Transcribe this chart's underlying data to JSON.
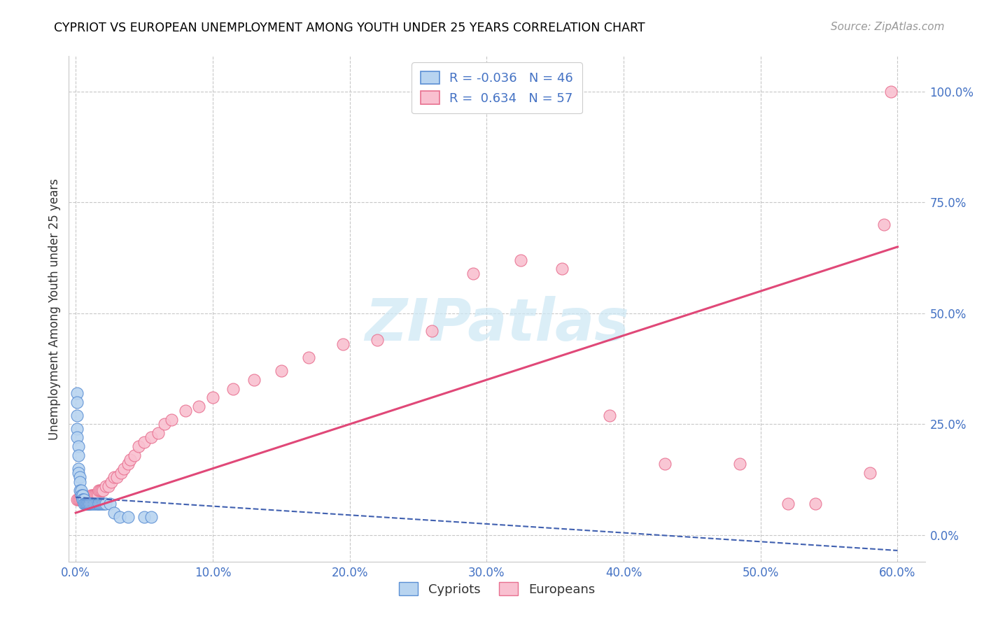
{
  "title": "CYPRIOT VS EUROPEAN UNEMPLOYMENT AMONG YOUTH UNDER 25 YEARS CORRELATION CHART",
  "source": "Source: ZipAtlas.com",
  "xlabel_ticks": [
    "0.0%",
    "10.0%",
    "20.0%",
    "30.0%",
    "40.0%",
    "50.0%",
    "60.0%"
  ],
  "ylabel_ticks": [
    "0.0%",
    "25.0%",
    "50.0%",
    "75.0%",
    "100.0%"
  ],
  "ylabel_label": "Unemployment Among Youth under 25 years",
  "xmin": -0.005,
  "xmax": 0.62,
  "ymin": -0.06,
  "ymax": 1.08,
  "legend_cypriot_R": "-0.036",
  "legend_cypriot_N": "46",
  "legend_european_R": "0.634",
  "legend_european_N": "57",
  "cypriot_fill_color": "#b8d4f0",
  "cypriot_edge_color": "#5b8fd4",
  "european_fill_color": "#f9c0d0",
  "european_edge_color": "#e87090",
  "cypriot_line_color": "#4060b0",
  "european_line_color": "#e04878",
  "watermark_color": "#cde8f5",
  "cypriot_scatter_x": [
    0.001,
    0.001,
    0.001,
    0.001,
    0.001,
    0.002,
    0.002,
    0.002,
    0.002,
    0.003,
    0.003,
    0.003,
    0.004,
    0.004,
    0.005,
    0.005,
    0.005,
    0.005,
    0.006,
    0.006,
    0.007,
    0.007,
    0.008,
    0.008,
    0.009,
    0.009,
    0.01,
    0.01,
    0.011,
    0.012,
    0.013,
    0.014,
    0.015,
    0.016,
    0.017,
    0.018,
    0.019,
    0.02,
    0.021,
    0.022,
    0.025,
    0.028,
    0.032,
    0.038,
    0.05,
    0.055
  ],
  "cypriot_scatter_y": [
    0.32,
    0.3,
    0.27,
    0.24,
    0.22,
    0.2,
    0.18,
    0.15,
    0.14,
    0.13,
    0.12,
    0.1,
    0.1,
    0.09,
    0.09,
    0.09,
    0.08,
    0.08,
    0.08,
    0.07,
    0.07,
    0.07,
    0.07,
    0.07,
    0.07,
    0.07,
    0.07,
    0.07,
    0.07,
    0.07,
    0.07,
    0.07,
    0.07,
    0.07,
    0.07,
    0.07,
    0.07,
    0.07,
    0.07,
    0.07,
    0.07,
    0.05,
    0.04,
    0.04,
    0.04,
    0.04
  ],
  "european_scatter_x": [
    0.001,
    0.002,
    0.003,
    0.004,
    0.005,
    0.006,
    0.007,
    0.008,
    0.009,
    0.01,
    0.011,
    0.012,
    0.013,
    0.014,
    0.015,
    0.016,
    0.017,
    0.018,
    0.019,
    0.02,
    0.022,
    0.024,
    0.026,
    0.028,
    0.03,
    0.033,
    0.035,
    0.038,
    0.04,
    0.043,
    0.046,
    0.05,
    0.055,
    0.06,
    0.065,
    0.07,
    0.08,
    0.09,
    0.1,
    0.115,
    0.13,
    0.15,
    0.17,
    0.195,
    0.22,
    0.26,
    0.29,
    0.325,
    0.355,
    0.39,
    0.43,
    0.485,
    0.52,
    0.54,
    0.58,
    0.59,
    0.595
  ],
  "european_scatter_y": [
    0.08,
    0.08,
    0.08,
    0.08,
    0.08,
    0.08,
    0.08,
    0.08,
    0.08,
    0.08,
    0.09,
    0.09,
    0.09,
    0.09,
    0.09,
    0.09,
    0.1,
    0.1,
    0.1,
    0.1,
    0.11,
    0.11,
    0.12,
    0.13,
    0.13,
    0.14,
    0.15,
    0.16,
    0.17,
    0.18,
    0.2,
    0.21,
    0.22,
    0.23,
    0.25,
    0.26,
    0.28,
    0.29,
    0.31,
    0.33,
    0.35,
    0.37,
    0.4,
    0.43,
    0.44,
    0.46,
    0.59,
    0.62,
    0.6,
    0.27,
    0.16,
    0.16,
    0.07,
    0.07,
    0.14,
    0.7,
    1.0
  ],
  "cypriot_trend_x": [
    0.0,
    0.6
  ],
  "cypriot_trend_y": [
    0.085,
    -0.035
  ],
  "european_trend_x": [
    0.0,
    0.6
  ],
  "european_trend_y": [
    0.05,
    0.65
  ]
}
